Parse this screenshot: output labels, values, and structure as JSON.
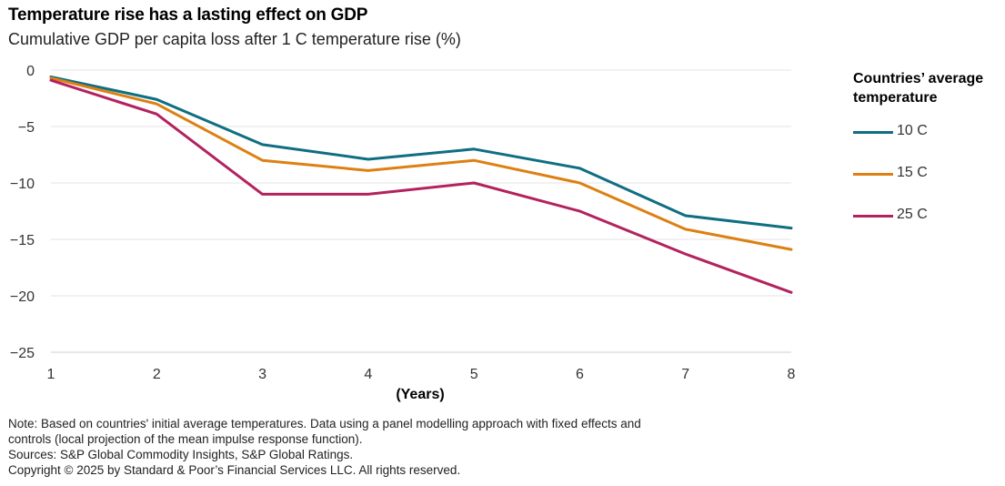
{
  "title": "Temperature rise has a lasting effect on GDP",
  "subtitle": "Cumulative GDP per capita loss after 1 C temperature rise (%)",
  "legend": {
    "title_line1": "Countries’ average",
    "title_line2": "temperature"
  },
  "notes": {
    "note_line1": "Note: Based on countries' initial average temperatures. Data using a panel modelling approach with fixed effects and",
    "note_line2": "controls (local projection of the mean impulse response function).",
    "sources": "Sources: S&P Global Commodity Insights, S&P Global Ratings.",
    "copyright": "Copyright © 2025 by Standard & Poor’s Financial Services LLC. All rights reserved."
  },
  "chart_data": {
    "type": "line",
    "title": "Temperature rise has a lasting effect on GDP",
    "subtitle": "Cumulative GDP per capita loss after 1 C temperature rise (%)",
    "xlabel": "(Years)",
    "ylabel": "",
    "x": [
      1,
      2,
      3,
      4,
      5,
      6,
      7,
      8
    ],
    "xlim": [
      1,
      8
    ],
    "ylim": [
      -25,
      0
    ],
    "yticks": [
      0,
      -5,
      -10,
      -15,
      -20,
      -25
    ],
    "grid": true,
    "legend_position": "right",
    "series": [
      {
        "name": "10 C",
        "color": "#0f6e82",
        "values": [
          -0.6,
          -2.6,
          -6.6,
          -7.9,
          -7.0,
          -8.7,
          -12.9,
          -14.0
        ]
      },
      {
        "name": "15 C",
        "color": "#dd8012",
        "values": [
          -0.7,
          -3.0,
          -8.0,
          -8.9,
          -8.0,
          -10.0,
          -14.1,
          -15.9
        ]
      },
      {
        "name": "25 C",
        "color": "#b3225f",
        "values": [
          -0.9,
          -3.9,
          -11.0,
          -11.0,
          -10.0,
          -12.5,
          -16.3,
          -19.7
        ]
      }
    ]
  }
}
